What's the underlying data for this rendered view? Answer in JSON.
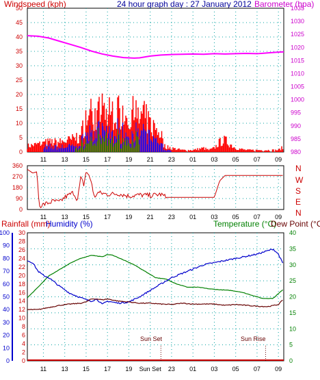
{
  "header": {
    "windspeed_label": "Windspeed (kph)",
    "title": "24 hour graph day : 27 January 2012",
    "barometer_label": "Barometer (hpa)"
  },
  "panel3_header": {
    "rainfall_label": "Rainfall (mm)",
    "humidity_label": "Humidity (%)",
    "temperature_label": "Temperature (°C)",
    "dewpoint_label": "Dew Point (°C)"
  },
  "annotations": {
    "sunset": "Sun Set",
    "sunrise": "Sun Rise"
  },
  "colors": {
    "wind": "#ff0000",
    "barometer": "#ff00ff",
    "gust": "#0000ff",
    "avg": "#008000",
    "direction": "#cc0000",
    "temperature": "#008000",
    "humidity": "#0000cc",
    "dewpoint": "#660000",
    "rainfall": "#cc0000",
    "grid": "#00a0a0"
  },
  "chart_data": [
    {
      "type": "bar",
      "name_ref": "wind-and-barometer",
      "x_ticks": [
        "11",
        "13",
        "15",
        "17",
        "19",
        "21",
        "23",
        "01",
        "03",
        "05",
        "07",
        "09"
      ],
      "x_range_hours": [
        9.5,
        33.5
      ],
      "ylim_left": [
        0,
        50
      ],
      "yticks_left": [
        0,
        5,
        10,
        15,
        20,
        25,
        30,
        35,
        40,
        45,
        50
      ],
      "ylim_right": [
        980,
        1035
      ],
      "yticks_right": [
        980,
        985,
        990,
        995,
        1000,
        1005,
        1010,
        1015,
        1020,
        1025,
        1030,
        1035
      ],
      "wind_gust_envelope": {
        "x": [
          9.5,
          10.5,
          11.5,
          12.5,
          13.5,
          14.5,
          15.0,
          15.5,
          16.0,
          16.5,
          17.0,
          17.5,
          18.0,
          18.5,
          19.0,
          19.5,
          20.0,
          20.5,
          21.0,
          21.5,
          22.0,
          22.3,
          23.0,
          24.0,
          25.0,
          26.0,
          26.5,
          27.0,
          27.5,
          28.0,
          28.5,
          29.0,
          30.0,
          33.0,
          33.3
        ],
        "y": [
          3,
          4,
          5,
          5,
          6,
          8,
          18,
          20,
          18,
          22,
          19,
          21,
          20,
          22,
          18,
          20,
          17,
          18,
          14,
          12,
          10,
          3,
          2,
          1,
          1,
          2,
          1,
          2,
          5,
          6,
          4,
          2,
          1,
          1,
          2
        ]
      },
      "barometer": {
        "x": [
          9.5,
          10.5,
          11.5,
          12.5,
          13.5,
          14.5,
          15.5,
          16.5,
          17.5,
          18.5,
          19.5,
          20.0,
          21.0,
          22.0,
          23.0,
          24.0,
          25.0,
          26.0,
          27.0,
          28.0,
          29.0,
          30.0,
          31.0,
          32.0,
          33.0,
          33.5
        ],
        "y": [
          1024.5,
          1024.3,
          1023.6,
          1022.4,
          1021.2,
          1020.0,
          1018.6,
          1017.5,
          1016.7,
          1016.1,
          1015.9,
          1016.0,
          1016.7,
          1017.1,
          1017.3,
          1017.4,
          1017.5,
          1017.4,
          1017.6,
          1017.5,
          1017.6,
          1017.7,
          1017.6,
          1017.9,
          1018.2,
          1018.3
        ]
      }
    },
    {
      "type": "line",
      "name_ref": "wind-direction",
      "x_ticks": [
        "11",
        "13",
        "15",
        "17",
        "19",
        "21",
        "23",
        "01",
        "03",
        "05",
        "07",
        "09"
      ],
      "ylim": [
        0,
        360
      ],
      "yticks": [
        0,
        90,
        180,
        270,
        360
      ],
      "compass": [
        "N",
        "W",
        "S",
        "E",
        "N"
      ],
      "series": [
        {
          "x": [
            9.5,
            10.0,
            10.4,
            10.6,
            11.0,
            12.0,
            12.5,
            13.0,
            13.8,
            14.2,
            14.5,
            14.8,
            15.0,
            15.5,
            15.8,
            16.0,
            17.0,
            18.0,
            19.0,
            20.0,
            21.0,
            22.0,
            22.5,
            27.0,
            27.5,
            28.0,
            29.0,
            33.0,
            33.5
          ],
          "y": [
            330,
            300,
            310,
            30,
            40,
            70,
            60,
            100,
            140,
            80,
            260,
            200,
            320,
            230,
            80,
            140,
            125,
            130,
            110,
            120,
            115,
            125,
            100,
            100,
            235,
            280,
            280,
            280,
            280
          ]
        }
      ]
    },
    {
      "type": "line",
      "name_ref": "temperature-humidity",
      "x_ticks": [
        "11",
        "13",
        "15",
        "17",
        "19",
        "Sun Set",
        "23",
        "01",
        "03",
        "05",
        "07",
        "09"
      ],
      "ylim_rain": [
        0,
        100
      ],
      "yticks_rain": [
        0,
        10,
        20,
        30,
        40,
        50,
        60,
        70,
        80,
        90,
        100
      ],
      "ylim_humidity_inner": [
        0,
        30
      ],
      "yticks_humidity_inner": [
        0,
        2,
        4,
        6,
        8,
        10,
        12,
        14,
        16,
        18,
        20,
        22,
        24,
        26,
        28,
        30
      ],
      "ylim_temp": [
        0,
        40
      ],
      "yticks_temp": [
        0,
        5,
        10,
        15,
        20,
        25,
        30,
        35,
        40
      ],
      "series": [
        {
          "name": "Temperature",
          "x": [
            9.5,
            10.5,
            11.5,
            12.5,
            13.5,
            14.5,
            15.5,
            16.5,
            17.0,
            17.5,
            18.5,
            19.5,
            20.5,
            21.5,
            22.5,
            23.5,
            24.5,
            25.5,
            26.5,
            27.5,
            28.5,
            29.5,
            30.5,
            31.5,
            32.5,
            33.5
          ],
          "y": [
            19.7,
            23.0,
            26.5,
            28.5,
            30.5,
            32.0,
            33.0,
            32.5,
            33.2,
            33.0,
            31.5,
            30.0,
            28.0,
            26.0,
            25.5,
            24.0,
            23.0,
            23.0,
            22.5,
            22.2,
            22.0,
            21.5,
            20.5,
            19.5,
            19.5,
            22.5
          ]
        },
        {
          "name": "Humidity",
          "x": [
            9.5,
            10.0,
            10.5,
            11.0,
            11.5,
            12.5,
            13.5,
            14.5,
            15.0,
            15.5,
            16.0,
            16.5,
            17.0,
            18.0,
            19.0,
            20.0,
            21.0,
            22.0,
            23.0,
            24.0,
            25.0,
            26.0,
            27.0,
            28.0,
            29.0,
            30.0,
            31.0,
            32.0,
            32.5,
            33.0,
            33.5
          ],
          "y": [
            23.5,
            23.0,
            21.0,
            20.0,
            19.5,
            17.5,
            15.8,
            14.8,
            14.3,
            14.0,
            14.5,
            13.2,
            14.0,
            13.5,
            13.8,
            15.0,
            16.5,
            18.0,
            19.5,
            20.5,
            21.5,
            22.5,
            23.0,
            23.5,
            24.0,
            24.5,
            25.0,
            25.8,
            26.2,
            25.0,
            22.3
          ]
        },
        {
          "name": "Dew Point",
          "x": [
            9.5,
            10.5,
            11.5,
            12.5,
            13.5,
            14.5,
            15.0,
            15.5,
            16.0,
            16.5,
            17.0,
            18.0,
            19.0,
            20.0,
            21.0,
            22.0,
            23.0,
            24.0,
            25.0,
            26.0,
            27.0,
            28.0,
            29.0,
            30.0,
            31.0,
            32.0,
            33.0,
            33.5
          ],
          "y": [
            12.0,
            12.0,
            12.5,
            13.0,
            13.3,
            13.5,
            13.8,
            14.5,
            14.5,
            14.3,
            14.5,
            14.0,
            13.8,
            13.5,
            13.5,
            13.3,
            13.2,
            13.5,
            13.3,
            13.3,
            13.3,
            13.0,
            13.2,
            13.0,
            12.8,
            12.7,
            13.2,
            14.5
          ]
        },
        {
          "name": "Rainfall",
          "x": [
            9.5,
            33.5
          ],
          "y": [
            0,
            0
          ]
        }
      ],
      "sunset_hour": 22.0,
      "sunrise_hour": 31.8
    }
  ]
}
